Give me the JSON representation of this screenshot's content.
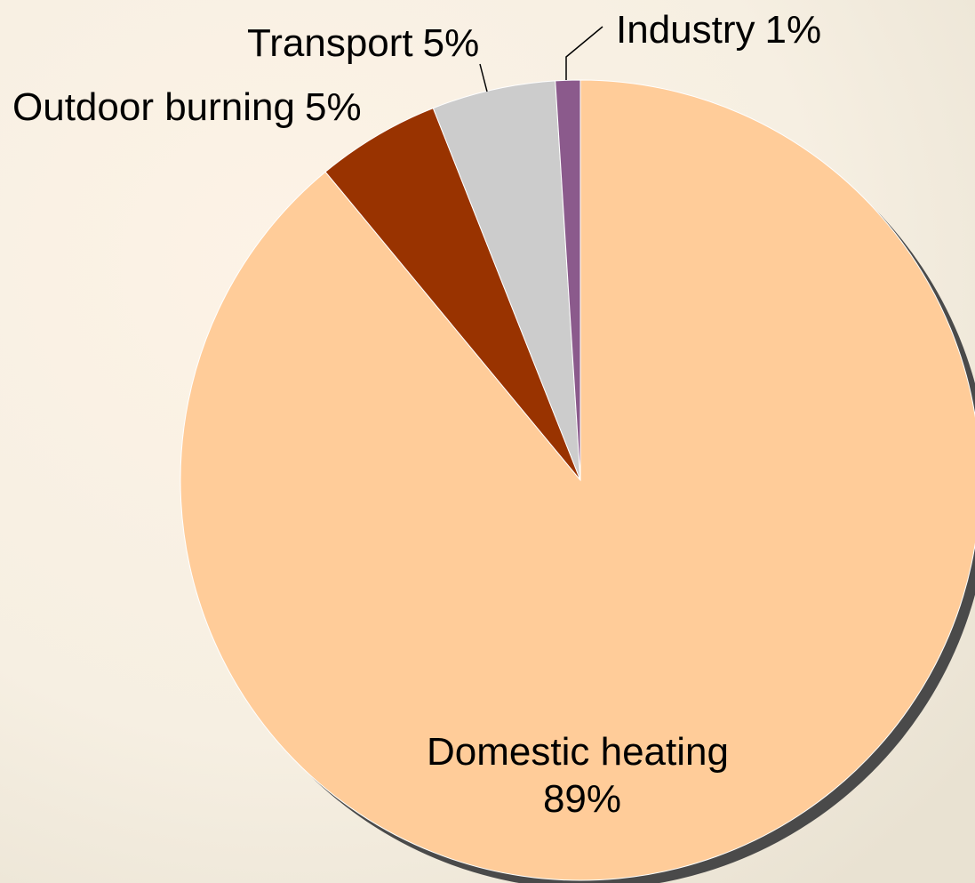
{
  "chart_data": {
    "type": "pie",
    "categories": [
      "Domestic heating",
      "Outdoor burning",
      "Transport",
      "Industry"
    ],
    "values": [
      89,
      5,
      5,
      1
    ],
    "value_labels": [
      "89%",
      "5%",
      "5%",
      "1%"
    ],
    "colors": [
      "#ffcc99",
      "#993300",
      "#cccccc",
      "#8b5a8c"
    ]
  }
}
